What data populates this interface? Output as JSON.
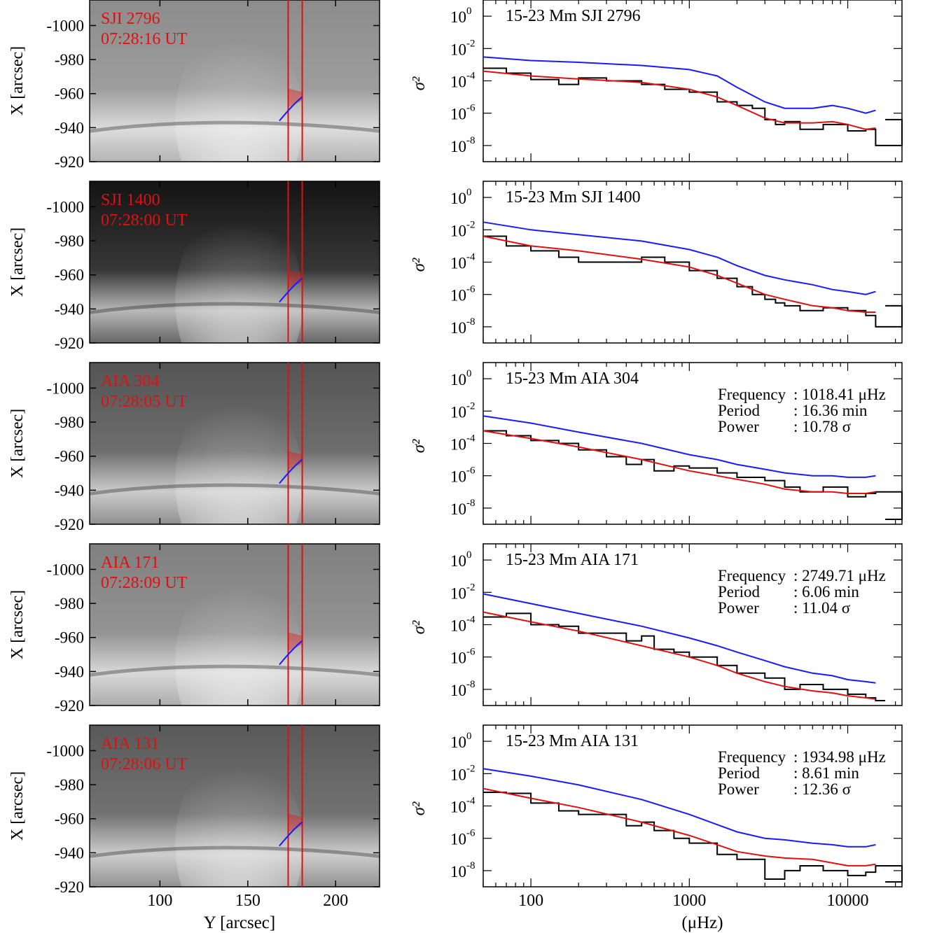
{
  "figure": {
    "left_xlabel": "Y [arcsec]",
    "left_ylabel": "X [arcsec]",
    "right_xlabel": "(μHz)",
    "right_ylabel": "σ²"
  },
  "colors": {
    "data": "#000000",
    "fit": "#e01010",
    "confidence": "#1a1aff",
    "annotation": "#e01010",
    "slit_line": "#e01010",
    "path": "#1a1aff"
  },
  "image_axes": {
    "x_ticks": [
      100,
      150,
      200
    ],
    "x_range": [
      60,
      225
    ],
    "y_ticks": [
      -1000,
      -980,
      -960,
      -940,
      -920
    ],
    "y_range": [
      -1015,
      -920
    ],
    "slit_x": [
      173,
      181
    ],
    "arc_from": [
      168,
      -944
    ],
    "arc_to": [
      181,
      -958
    ]
  },
  "chart_data": [
    {
      "type": "line",
      "title": "15-23 Mm SJI 2796",
      "xscale": "log",
      "yscale": "log",
      "xlim": [
        50,
        22000
      ],
      "ylim": [
        1e-09,
        10
      ],
      "xticks": [
        "100",
        "1000",
        "10000"
      ],
      "yticks": [
        {
          "v": 1,
          "exp": "0"
        },
        {
          "v": 0.01,
          "exp": "-2"
        },
        {
          "v": 0.0001,
          "exp": "-4"
        },
        {
          "v": 1e-06,
          "exp": "-6"
        },
        {
          "v": 1e-08,
          "exp": "-8"
        }
      ],
      "image": {
        "band": "SJI 2796",
        "time": "07:28:16 UT",
        "gray_level": 0.55
      },
      "series": [
        {
          "role": "observed",
          "x": [
            50,
            70,
            100,
            150,
            200,
            300,
            500,
            700,
            1000,
            1500,
            2000,
            2500,
            3000,
            3500,
            4000,
            5000,
            7000,
            10000,
            13000,
            15000,
            22000
          ],
          "y": [
            0.0006,
            0.0003,
            0.00012,
            6e-05,
            0.00015,
            0.0001,
            6e-05,
            3e-05,
            2e-05,
            5e-06,
            3e-06,
            2e-06,
            4e-07,
            2e-07,
            3e-07,
            1e-07,
            2e-07,
            8e-08,
            1e-07,
            1e-08,
            4e-07
          ]
        },
        {
          "role": "fit",
          "x": [
            50,
            100,
            200,
            500,
            1000,
            1500,
            2000,
            3000,
            4000,
            6000,
            8000,
            10000,
            13000,
            15000
          ],
          "y": [
            0.0004,
            0.0002,
            0.00013,
            8e-05,
            3e-05,
            1e-05,
            3e-06,
            5e-07,
            2.5e-07,
            2.5e-07,
            3e-07,
            2e-07,
            1e-07,
            1.2e-07
          ]
        },
        {
          "role": "confidence",
          "x": [
            50,
            100,
            200,
            500,
            1000,
            1500,
            2000,
            3000,
            4000,
            6000,
            8000,
            10000,
            13000,
            15000
          ],
          "y": [
            0.003,
            0.0018,
            0.0014,
            0.0009,
            0.0005,
            0.0002,
            4e-05,
            5e-06,
            2e-06,
            2e-06,
            3e-06,
            2e-06,
            1e-06,
            1.5e-06
          ]
        }
      ],
      "annotation": []
    },
    {
      "type": "line",
      "title": "15-23 Mm SJI 1400",
      "xscale": "log",
      "yscale": "log",
      "xlim": [
        50,
        22000
      ],
      "ylim": [
        1e-09,
        10
      ],
      "xticks": [
        "100",
        "1000",
        "10000"
      ],
      "yticks": [
        {
          "v": 1,
          "exp": "0"
        },
        {
          "v": 0.01,
          "exp": "-2"
        },
        {
          "v": 0.0001,
          "exp": "-4"
        },
        {
          "v": 1e-06,
          "exp": "-6"
        },
        {
          "v": 1e-08,
          "exp": "-8"
        }
      ],
      "image": {
        "band": "SJI 1400",
        "time": "07:28:00 UT",
        "gray_level": 0.08
      },
      "series": [
        {
          "role": "observed",
          "x": [
            50,
            70,
            100,
            150,
            200,
            300,
            500,
            700,
            1000,
            1500,
            2000,
            2500,
            3000,
            3500,
            4000,
            5000,
            7000,
            10000,
            13000,
            15000,
            22000
          ],
          "y": [
            0.004,
            0.001,
            0.0005,
            0.0002,
            0.0001,
            0.0001,
            0.0002,
            0.0001,
            3e-05,
            1e-05,
            3e-06,
            1e-06,
            5e-07,
            3e-07,
            2e-07,
            1e-07,
            1.5e-07,
            1e-07,
            5e-08,
            1e-08,
            2e-07
          ]
        },
        {
          "role": "fit",
          "x": [
            50,
            100,
            200,
            500,
            1000,
            1500,
            2000,
            3000,
            4000,
            6000,
            8000,
            10000,
            13000,
            15000
          ],
          "y": [
            0.004,
            0.001,
            0.0005,
            0.00015,
            5e-05,
            1.5e-05,
            5e-06,
            1e-06,
            5e-07,
            2e-07,
            1.5e-07,
            1e-07,
            8e-08,
            8e-08
          ]
        },
        {
          "role": "confidence",
          "x": [
            50,
            100,
            200,
            500,
            1000,
            1500,
            2000,
            3000,
            4000,
            6000,
            8000,
            10000,
            13000,
            15000
          ],
          "y": [
            0.03,
            0.01,
            0.005,
            0.002,
            0.0006,
            0.0002,
            6e-05,
            1.5e-05,
            8e-06,
            4e-06,
            2e-06,
            1.5e-06,
            1e-06,
            1.5e-06
          ]
        }
      ],
      "annotation": []
    },
    {
      "type": "line",
      "title": "15-23 Mm AIA 304",
      "xscale": "log",
      "yscale": "log",
      "xlim": [
        50,
        22000
      ],
      "ylim": [
        1e-09,
        10
      ],
      "xticks": [
        "100",
        "1000",
        "10000"
      ],
      "yticks": [
        {
          "v": 1,
          "exp": "0"
        },
        {
          "v": 0.01,
          "exp": "-2"
        },
        {
          "v": 0.0001,
          "exp": "-4"
        },
        {
          "v": 1e-06,
          "exp": "-6"
        },
        {
          "v": 1e-08,
          "exp": "-8"
        }
      ],
      "image": {
        "band": "AIA 304",
        "time": "07:28:05 UT",
        "gray_level": 0.33
      },
      "series": [
        {
          "role": "observed",
          "x": [
            50,
            70,
            100,
            150,
            200,
            300,
            400,
            500,
            600,
            800,
            1000,
            1500,
            2000,
            3000,
            4000,
            5000,
            7000,
            10000,
            13000,
            15000,
            22000
          ],
          "y": [
            0.0006,
            0.0003,
            0.00015,
            0.0001,
            4e-05,
            1.5e-05,
            5e-06,
            1e-05,
            2e-06,
            4e-06,
            3e-06,
            1.5e-06,
            8e-07,
            5e-07,
            2e-07,
            1e-07,
            2e-07,
            5e-08,
            8e-08,
            1e-07,
            2e-09
          ]
        },
        {
          "role": "fit",
          "x": [
            50,
            100,
            200,
            500,
            1000,
            1500,
            2000,
            3000,
            4000,
            6000,
            8000,
            10000,
            13000,
            15000
          ],
          "y": [
            0.0006,
            0.0002,
            6e-05,
            1e-05,
            2e-06,
            1e-06,
            6e-07,
            3e-07,
            1.5e-07,
            1e-07,
            1e-07,
            8e-08,
            8e-08,
            1e-07
          ]
        },
        {
          "role": "confidence",
          "x": [
            50,
            100,
            200,
            500,
            1000,
            1500,
            2000,
            3000,
            4000,
            6000,
            8000,
            10000,
            13000,
            15000
          ],
          "y": [
            0.005,
            0.0018,
            0.0005,
            0.0001,
            2e-05,
            1e-05,
            5e-06,
            2.5e-06,
            1.5e-06,
            1e-06,
            1e-06,
            8e-07,
            8e-07,
            1e-06
          ]
        }
      ],
      "annotation": [
        {
          "label": "Frequency",
          "value": ": 1018.41 μHz"
        },
        {
          "label": "Period",
          "value": ": 16.36 min"
        },
        {
          "label": "Power",
          "value": ": 10.78 σ"
        }
      ]
    },
    {
      "type": "line",
      "title": "15-23 Mm AIA 171",
      "xscale": "log",
      "yscale": "log",
      "xlim": [
        50,
        22000
      ],
      "ylim": [
        1e-09,
        10
      ],
      "xticks": [
        "100",
        "1000",
        "10000"
      ],
      "yticks": [
        {
          "v": 1,
          "exp": "0"
        },
        {
          "v": 0.01,
          "exp": "-2"
        },
        {
          "v": 0.0001,
          "exp": "-4"
        },
        {
          "v": 1e-06,
          "exp": "-6"
        },
        {
          "v": 1e-08,
          "exp": "-8"
        }
      ],
      "image": {
        "band": "AIA 171",
        "time": "07:28:09 UT",
        "gray_level": 0.5
      },
      "series": [
        {
          "role": "observed",
          "x": [
            50,
            70,
            100,
            150,
            200,
            300,
            400,
            500,
            600,
            800,
            1000,
            1500,
            2000,
            3000,
            4000,
            5000,
            7000,
            10000,
            13000,
            15000
          ],
          "y": [
            0.0003,
            0.0005,
            0.0001,
            8e-05,
            3e-05,
            3e-05,
            1e-05,
            2e-05,
            3e-06,
            2e-06,
            1e-06,
            3e-07,
            1e-07,
            5e-08,
            1e-08,
            2e-08,
            1e-08,
            5e-09,
            3e-09,
            2e-09
          ]
        },
        {
          "role": "fit",
          "x": [
            50,
            100,
            200,
            500,
            1000,
            1500,
            2000,
            3000,
            4000,
            6000,
            8000,
            10000,
            13000,
            15000
          ],
          "y": [
            0.0006,
            0.00015,
            4e-05,
            5e-06,
            1e-06,
            3e-07,
            1e-07,
            3e-08,
            1.5e-08,
            8e-09,
            6e-09,
            4e-09,
            3e-09,
            2.5e-09
          ]
        },
        {
          "role": "confidence",
          "x": [
            50,
            100,
            200,
            500,
            1000,
            1500,
            2000,
            3000,
            4000,
            6000,
            8000,
            10000,
            13000,
            15000
          ],
          "y": [
            0.008,
            0.002,
            0.0005,
            8e-05,
            1.5e-05,
            5e-06,
            2e-06,
            6e-07,
            2.5e-07,
            1e-07,
            7e-08,
            4e-08,
            3e-08,
            2.5e-08
          ]
        }
      ],
      "annotation": [
        {
          "label": "Frequency",
          "value": ": 2749.71 μHz"
        },
        {
          "label": "Period",
          "value": ": 6.06 min"
        },
        {
          "label": "Power",
          "value": ": 11.04 σ"
        }
      ]
    },
    {
      "type": "line",
      "title": "15-23 Mm AIA 131",
      "xscale": "log",
      "yscale": "log",
      "xlim": [
        50,
        22000
      ],
      "ylim": [
        1e-09,
        10
      ],
      "xticks": [
        "100",
        "1000",
        "10000"
      ],
      "yticks": [
        {
          "v": 1,
          "exp": "0"
        },
        {
          "v": 0.01,
          "exp": "-2"
        },
        {
          "v": 0.0001,
          "exp": "-4"
        },
        {
          "v": 1e-06,
          "exp": "-6"
        },
        {
          "v": 1e-08,
          "exp": "-8"
        }
      ],
      "image": {
        "band": "AIA 131",
        "time": "07:28:06 UT",
        "gray_level": 0.35
      },
      "series": [
        {
          "role": "observed",
          "x": [
            50,
            70,
            100,
            150,
            200,
            300,
            400,
            500,
            600,
            800,
            1000,
            1500,
            2000,
            3000,
            4000,
            5000,
            7000,
            10000,
            13000,
            15000,
            22000
          ],
          "y": [
            0.0007,
            0.0006,
            0.00015,
            5e-05,
            3e-05,
            3e-05,
            6e-06,
            1e-05,
            3e-06,
            1e-06,
            5e-07,
            1e-07,
            5e-08,
            3e-09,
            1e-08,
            2e-08,
            1e-08,
            5e-09,
            8e-09,
            2e-08,
            2e-09
          ]
        },
        {
          "role": "fit",
          "x": [
            50,
            100,
            200,
            500,
            1000,
            1500,
            2000,
            3000,
            4000,
            6000,
            8000,
            10000,
            13000,
            15000
          ],
          "y": [
            0.0012,
            0.0003,
            8e-05,
            1e-05,
            1.5e-06,
            4e-07,
            1.5e-07,
            8e-08,
            6e-08,
            5e-08,
            3e-08,
            2e-08,
            2e-08,
            2.5e-08
          ]
        },
        {
          "role": "confidence",
          "x": [
            50,
            100,
            200,
            500,
            1000,
            1500,
            2000,
            3000,
            4000,
            6000,
            8000,
            10000,
            13000,
            15000
          ],
          "y": [
            0.02,
            0.007,
            0.002,
            0.00025,
            3e-05,
            7e-06,
            2.5e-06,
            1e-06,
            8e-07,
            5e-07,
            4e-07,
            3e-07,
            3e-07,
            4e-07
          ]
        }
      ],
      "annotation": [
        {
          "label": "Frequency",
          "value": ": 1934.98 μHz"
        },
        {
          "label": "Period",
          "value": ": 8.61 min"
        },
        {
          "label": "Power",
          "value": ": 12.36 σ"
        }
      ]
    }
  ]
}
